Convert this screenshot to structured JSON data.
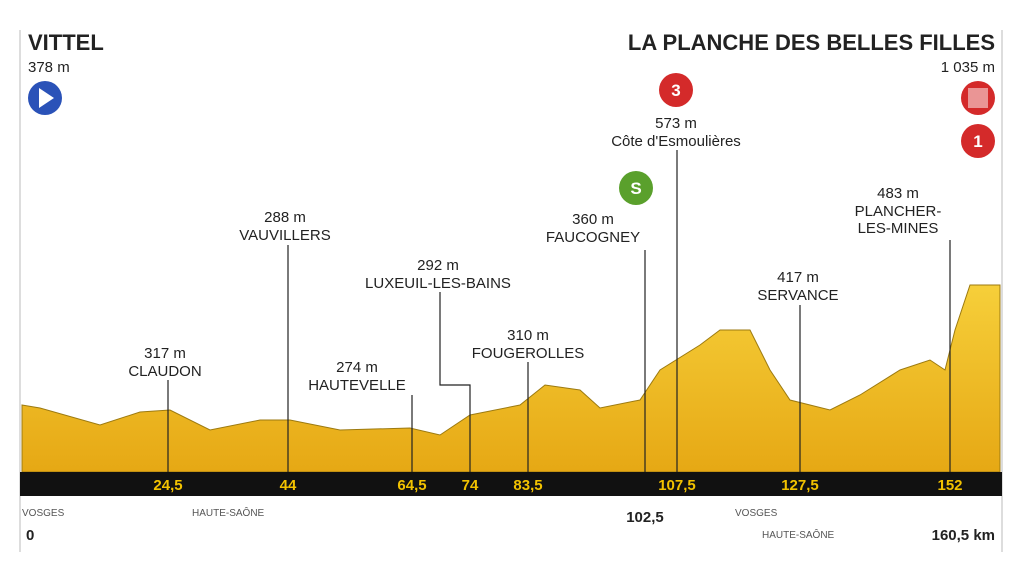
{
  "start": {
    "name": "VITTEL",
    "altitude": "378 m",
    "km": "0"
  },
  "finish": {
    "name": "LA PLANCHE DES BELLES FILLES",
    "altitude": "1 035 m",
    "km": "160,5 km"
  },
  "badges": {
    "climb_category": "3",
    "sprint": "S",
    "finish_category": "1"
  },
  "waypoints": [
    {
      "altitude": "317 m",
      "name": [
        "CLAUDON"
      ],
      "km": "24,5"
    },
    {
      "altitude": "288 m",
      "name": [
        "VAUVILLERS"
      ],
      "km": "44"
    },
    {
      "altitude": "274 m",
      "name": [
        "HAUTEVELLE"
      ],
      "km": "64,5"
    },
    {
      "altitude": "292 m",
      "name": [
        "LUXEUIL-LES-BAINS"
      ],
      "km": "74"
    },
    {
      "altitude": "310 m",
      "name": [
        "FOUGEROLLES"
      ],
      "km": "83,5"
    },
    {
      "altitude": "360 m",
      "name": [
        "FAUCOGNEY"
      ],
      "km": "102,5"
    },
    {
      "altitude": "573 m",
      "name": [
        "Côte d'Esmoulières"
      ],
      "km": "107,5"
    },
    {
      "altitude": "417 m",
      "name": [
        "SERVANCE"
      ],
      "km": "127,5"
    },
    {
      "altitude": "483 m",
      "name": [
        "PLANCHER-",
        "LES-MINES"
      ],
      "km": "152"
    }
  ],
  "regions": [
    "VOSGES",
    "HAUTE-SAÔNE",
    "VOSGES",
    "HAUTE-SAÔNE"
  ]
}
